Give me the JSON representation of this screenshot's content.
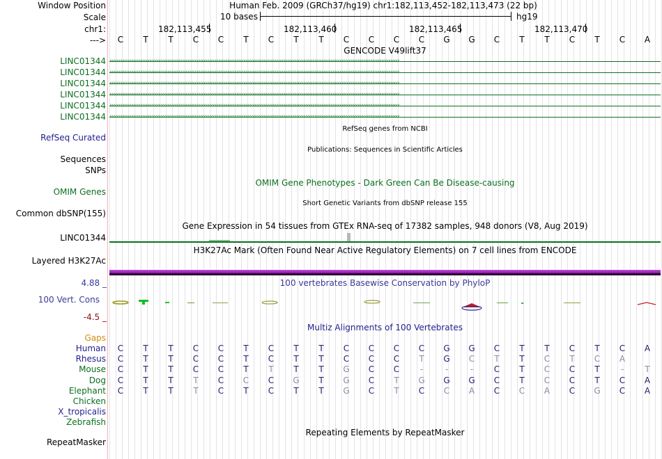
{
  "header": {
    "position_label": "Window Position",
    "position_value": "Human Feb. 2009 (GRCh37/hg19)   chr1:182,113,452-182,113,473 (22 bp)",
    "scale_label": "Scale",
    "scale_value": "10 bases",
    "assembly": "hg19",
    "chrom_label": "chr1:",
    "strand_label": "--->",
    "coords": [
      "182,113,455",
      "182,113,460",
      "182,113,465",
      "182,113,470"
    ]
  },
  "bases": [
    "C",
    "T",
    "T",
    "C",
    "C",
    "T",
    "C",
    "T",
    "T",
    "C",
    "C",
    "C",
    "C",
    "G",
    "G",
    "C",
    "T",
    "T",
    "C",
    "T",
    "C",
    "A"
  ],
  "gencode": {
    "title": "GENCODE V49lift37",
    "rows": [
      "LINC01344",
      "LINC01344",
      "LINC01344",
      "LINC01344",
      "LINC01344",
      "LINC01344"
    ]
  },
  "tracks": {
    "refseq_title": "RefSeq genes from NCBI",
    "refseq_label": "RefSeq Curated",
    "pubs_title": "Publications: Sequences in Scientific Articles",
    "sequences_label": "Sequences",
    "snps_label": "SNPs",
    "omim_title": "OMIM Gene Phenotypes - Dark Green Can Be Disease-causing",
    "omim_label": "OMIM Genes",
    "dbsnp_title": "Short Genetic Variants from dbSNP release 155",
    "dbsnp_label": "Common dbSNP(155)",
    "gtex_title": "Gene Expression in 54 tissues from GTEx RNA-seq of 17382 samples, 948 donors (V8, Aug 2019)",
    "gtex_label": "LINC01344",
    "h3k27_title": "H3K27Ac Mark (Often Found Near Active Regulatory Elements) on 7 cell lines from ENCODE",
    "h3k27_label": "Layered H3K27Ac",
    "phylop_title": "100 vertebrates Basewise Conservation by PhyloP",
    "phylop_max": "4.88 _",
    "phylop_label": "100 Vert. Cons",
    "phylop_min": "-4.5 _",
    "multiz_title": "Multiz Alignments of 100 Vertebrates",
    "repeat_title": "Repeating Elements by RepeatMasker",
    "repeat_label": "RepeatMasker"
  },
  "alignment": {
    "gaps_label": "Gaps",
    "species": [
      {
        "name": "Human",
        "seq": [
          "C",
          "T",
          "T",
          "C",
          "C",
          "T",
          "C",
          "T",
          "T",
          "C",
          "C",
          "C",
          "C",
          "G",
          "G",
          "C",
          "T",
          "T",
          "C",
          "T",
          "C",
          "A"
        ]
      },
      {
        "name": "Rhesus",
        "seq": [
          "C",
          "T",
          "T",
          "C",
          "C",
          "T",
          "C",
          "T",
          "T",
          "C",
          "C",
          "C",
          "T",
          "G",
          "C",
          "T",
          "T",
          "C",
          "T",
          "C",
          "A",
          ""
        ]
      },
      {
        "name": "Mouse",
        "seq": [
          "C",
          "T",
          "T",
          "C",
          "C",
          "T",
          "T",
          "T",
          "T",
          "G",
          "C",
          "C",
          "-",
          "-",
          "-",
          "C",
          "T",
          "C",
          "C",
          "T",
          "-",
          "T"
        ]
      },
      {
        "name": "Dog",
        "seq": [
          "C",
          "T",
          "T",
          "T",
          "C",
          "C",
          "C",
          "G",
          "T",
          "G",
          "C",
          "T",
          "G",
          "G",
          "G",
          "C",
          "T",
          "C",
          "C",
          "T",
          "C",
          "A"
        ]
      },
      {
        "name": "Elephant",
        "seq": [
          "C",
          "T",
          "T",
          "T",
          "C",
          "T",
          "C",
          "T",
          "T",
          "G",
          "C",
          "T",
          "C",
          "C",
          "A",
          "C",
          "C",
          "A",
          "C",
          "G",
          "C",
          "A"
        ]
      },
      {
        "name": "Chicken",
        "seq": []
      },
      {
        "name": "X_tropicalis",
        "seq": []
      },
      {
        "name": "Zebrafish",
        "seq": []
      }
    ]
  },
  "colors": {
    "label_blue": "#1f1f8c",
    "label_green": "#0c6f1e",
    "gaps_orange": "#d08c10",
    "phylop_blue": "#3a3a9a",
    "phylop_red": "#8a1010",
    "h3k27_purple": "#a020c0"
  }
}
